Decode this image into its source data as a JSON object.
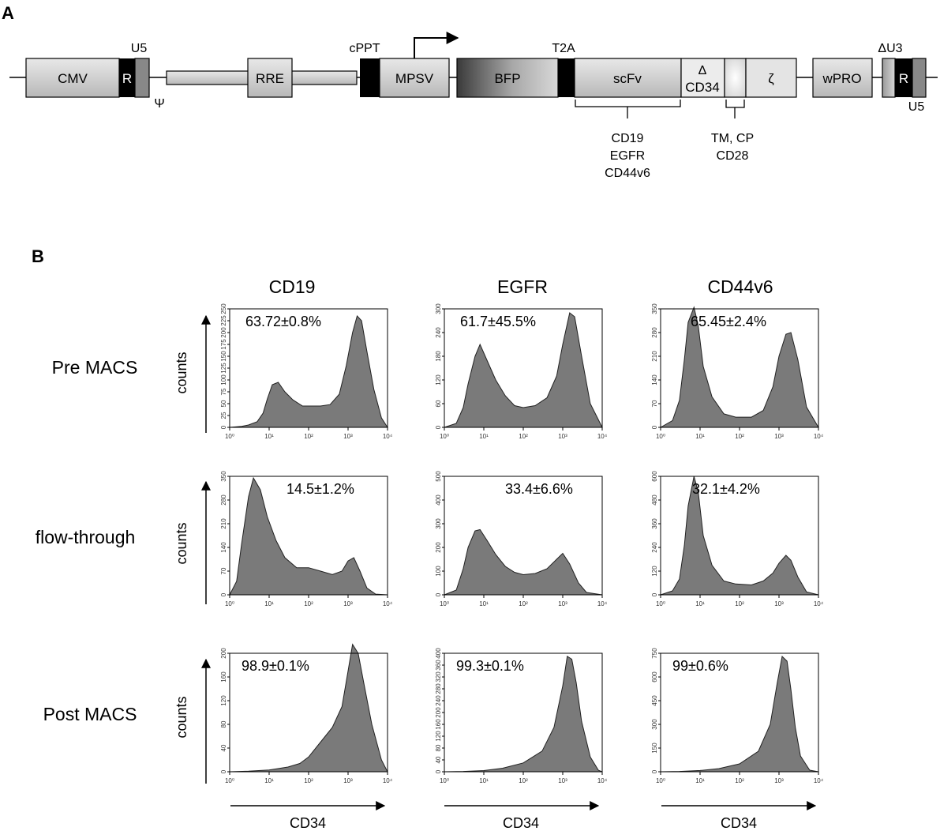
{
  "panel_a": {
    "letter": "A",
    "segments": {
      "cmv": "CMV",
      "r_left": "R",
      "rre": "RRE",
      "mpsv": "MPSV",
      "bfp": "BFP",
      "scfv": "scFv",
      "delta": "Δ",
      "cd34": "CD34",
      "zeta": "ζ",
      "wpro": "wPRO",
      "r_right": "R"
    },
    "labels": {
      "u5_left": "U5",
      "psi": "Ψ",
      "cppt": "cPPT",
      "t2a": "T2A",
      "delta_u3": "ΔU3",
      "u5_right": "U5"
    },
    "scfv_targets": [
      "CD19",
      "EGFR",
      "CD44v6"
    ],
    "tm_cp": [
      "TM, CP",
      "CD28"
    ]
  },
  "panel_b": {
    "letter": "B",
    "columns": [
      "CD19",
      "EGFR",
      "CD44v6"
    ],
    "rows": [
      "Pre MACS",
      "flow-through",
      "Post MACS"
    ],
    "ylabel": "counts",
    "xlabel": "CD34"
  },
  "chart_data": [
    {
      "type": "area",
      "row": "Pre MACS",
      "column": "CD19",
      "annotation": "63.72±0.8%",
      "x_scale": "log",
      "xlim": [
        1,
        10000
      ],
      "ylim": [
        0,
        250
      ],
      "yticks": [
        0,
        25,
        50,
        75,
        100,
        125,
        150,
        175,
        200,
        225,
        250
      ],
      "x": [
        1,
        2,
        3,
        5,
        7,
        9,
        12,
        17,
        25,
        40,
        70,
        120,
        200,
        350,
        600,
        900,
        1300,
        1700,
        2200,
        3000,
        4500,
        7000,
        10000
      ],
      "y": [
        0,
        2,
        5,
        12,
        30,
        60,
        90,
        95,
        75,
        58,
        45,
        45,
        45,
        48,
        70,
        130,
        200,
        235,
        225,
        160,
        80,
        20,
        0
      ]
    },
    {
      "type": "area",
      "row": "Pre MACS",
      "column": "EGFR",
      "annotation": "61.7±45.5%",
      "x_scale": "log",
      "xlim": [
        1,
        10000
      ],
      "ylim": [
        0,
        300
      ],
      "yticks": [
        0,
        60,
        120,
        180,
        240,
        300
      ],
      "x": [
        1,
        2,
        3,
        4,
        6,
        8,
        12,
        20,
        35,
        60,
        100,
        200,
        400,
        700,
        1000,
        1500,
        2000,
        3000,
        5000,
        10000
      ],
      "y": [
        0,
        10,
        50,
        110,
        180,
        210,
        170,
        120,
        80,
        55,
        50,
        55,
        75,
        130,
        210,
        290,
        280,
        180,
        60,
        0
      ]
    },
    {
      "type": "area",
      "row": "Pre MACS",
      "column": "CD44v6",
      "annotation": "65.45±2.4%",
      "x_scale": "log",
      "xlim": [
        1,
        10000
      ],
      "ylim": [
        0,
        350
      ],
      "yticks": [
        0,
        70,
        140,
        210,
        280,
        350
      ],
      "x": [
        1,
        2,
        3,
        4,
        5,
        7,
        9,
        12,
        20,
        40,
        80,
        200,
        400,
        700,
        1000,
        1500,
        2000,
        3000,
        5000,
        10000
      ],
      "y": [
        0,
        20,
        80,
        200,
        310,
        355,
        300,
        180,
        90,
        40,
        30,
        30,
        50,
        120,
        210,
        275,
        280,
        200,
        60,
        0
      ]
    },
    {
      "type": "area",
      "row": "flow-through",
      "column": "CD19",
      "annotation": "14.5±1.2%",
      "x_scale": "log",
      "xlim": [
        1,
        10000
      ],
      "ylim": [
        0,
        350
      ],
      "yticks": [
        0,
        70,
        140,
        210,
        280,
        350
      ],
      "x": [
        1,
        1.5,
        2,
        3,
        4,
        6,
        9,
        15,
        25,
        50,
        100,
        200,
        400,
        700,
        1000,
        1400,
        2000,
        3000,
        5000,
        10000
      ],
      "y": [
        0,
        40,
        150,
        290,
        345,
        310,
        230,
        160,
        110,
        80,
        80,
        70,
        60,
        70,
        100,
        110,
        70,
        20,
        2,
        0
      ]
    },
    {
      "type": "area",
      "row": "flow-through",
      "column": "EGFR",
      "annotation": "33.4±6.6%",
      "x_scale": "log",
      "xlim": [
        1,
        10000
      ],
      "ylim": [
        0,
        500
      ],
      "yticks": [
        0,
        100,
        200,
        300,
        400,
        500
      ],
      "x": [
        1,
        2,
        3,
        4,
        6,
        8,
        12,
        20,
        35,
        60,
        100,
        200,
        400,
        700,
        1000,
        1500,
        2500,
        4000,
        10000
      ],
      "y": [
        0,
        20,
        110,
        200,
        270,
        275,
        230,
        170,
        120,
        95,
        85,
        90,
        110,
        150,
        175,
        130,
        50,
        10,
        0
      ]
    },
    {
      "type": "area",
      "row": "flow-through",
      "column": "CD44v6",
      "annotation": "32.1±4.2%",
      "x_scale": "log",
      "xlim": [
        1,
        10000
      ],
      "ylim": [
        0,
        600
      ],
      "yticks": [
        0,
        120,
        240,
        360,
        480,
        600
      ],
      "x": [
        1,
        2,
        3,
        4,
        5,
        7,
        9,
        12,
        20,
        40,
        80,
        200,
        400,
        700,
        1000,
        1500,
        2000,
        3000,
        5000,
        10000
      ],
      "y": [
        0,
        20,
        80,
        250,
        450,
        600,
        520,
        300,
        150,
        70,
        55,
        50,
        70,
        110,
        160,
        200,
        175,
        90,
        15,
        0
      ]
    },
    {
      "type": "area",
      "row": "Post MACS",
      "column": "CD19",
      "annotation": "98.9±0.1%",
      "x_scale": "log",
      "xlim": [
        1,
        10000
      ],
      "ylim": [
        0,
        200
      ],
      "yticks": [
        0,
        40,
        80,
        120,
        160,
        200
      ],
      "x": [
        1,
        3,
        10,
        30,
        60,
        100,
        200,
        400,
        700,
        1000,
        1300,
        1800,
        2500,
        4000,
        7000,
        10000
      ],
      "y": [
        0,
        1,
        3,
        8,
        14,
        25,
        50,
        75,
        110,
        170,
        215,
        200,
        150,
        80,
        20,
        0
      ]
    },
    {
      "type": "area",
      "row": "Post MACS",
      "column": "EGFR",
      "annotation": "99.3±0.1%",
      "x_scale": "log",
      "xlim": [
        1,
        10000
      ],
      "ylim": [
        0,
        400
      ],
      "yticks": [
        0,
        40,
        80,
        120,
        160,
        200,
        240,
        280,
        320,
        360,
        400
      ],
      "x": [
        1,
        3,
        10,
        30,
        100,
        300,
        600,
        1000,
        1300,
        1700,
        2200,
        3000,
        5000,
        8000,
        10000
      ],
      "y": [
        0,
        1,
        4,
        12,
        30,
        70,
        150,
        290,
        390,
        380,
        300,
        170,
        50,
        5,
        0
      ]
    },
    {
      "type": "area",
      "row": "Post MACS",
      "column": "CD44v6",
      "annotation": "99±0.6%",
      "x_scale": "log",
      "xlim": [
        1,
        10000
      ],
      "ylim": [
        0,
        750
      ],
      "yticks": [
        0,
        150,
        300,
        450,
        600,
        750
      ],
      "x": [
        1,
        3,
        10,
        30,
        100,
        300,
        600,
        900,
        1200,
        1600,
        2000,
        2600,
        3500,
        6000,
        10000
      ],
      "y": [
        0,
        2,
        8,
        20,
        50,
        130,
        300,
        560,
        730,
        700,
        520,
        280,
        100,
        10,
        0
      ]
    }
  ]
}
